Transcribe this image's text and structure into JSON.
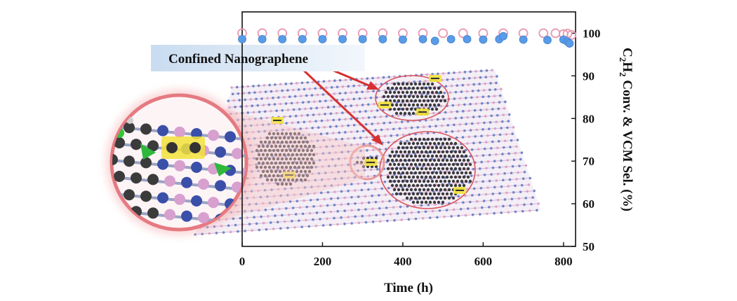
{
  "colors": {
    "conversion": "#5a9be8",
    "selectivity": "#e89ab0",
    "graphene_lattice": "#6f86c9",
    "graphene_pink": "#d7a6c7",
    "nanographene": "#3a3a3a",
    "acetylene_highlight": "#f2e23a",
    "zoom_ring": "#e0757a",
    "arrow": "#d63030",
    "label_banner": "#dde8f4"
  },
  "labels": {
    "confined_label": "Confined Nanographene"
  },
  "chart_data": {
    "type": "scatter",
    "title": "",
    "xlabel": "Time (h)",
    "ylabel_parts": [
      "C",
      "2",
      "H",
      "2",
      " Conv. & VCM Sel. (%)"
    ],
    "xlim": [
      0,
      830
    ],
    "ylim": [
      50,
      105
    ],
    "xticks": [
      "0",
      "200",
      "400",
      "600",
      "800"
    ],
    "yticks": [
      "50",
      "60",
      "70",
      "80",
      "90",
      "100"
    ],
    "grid": false,
    "axis_sides": {
      "x": "bottom",
      "y": "right"
    },
    "series": [
      {
        "color_key": "conversion",
        "marker": "filled-circle",
        "x": [
          0,
          50,
          100,
          150,
          200,
          250,
          300,
          350,
          400,
          450,
          480,
          520,
          560,
          600,
          640,
          650,
          700,
          760,
          800,
          810,
          815
        ],
        "y": [
          98.6,
          98.6,
          98.6,
          98.6,
          98.6,
          98.6,
          98.6,
          98.6,
          98.5,
          98.6,
          98.2,
          98.6,
          98.6,
          98.5,
          98.6,
          99.3,
          98.5,
          98.4,
          98.5,
          98.0,
          97.6
        ]
      },
      {
        "color_key": "selectivity",
        "marker": "open-circle",
        "x": [
          0,
          50,
          100,
          150,
          200,
          250,
          300,
          350,
          400,
          450,
          500,
          550,
          600,
          650,
          700,
          750,
          780,
          800,
          810,
          820
        ],
        "y": [
          100,
          100,
          100,
          100,
          100,
          100,
          100,
          100,
          100,
          100,
          100,
          100,
          100,
          100,
          100,
          100,
          100,
          99.8,
          99.9,
          99.6
        ]
      }
    ]
  }
}
